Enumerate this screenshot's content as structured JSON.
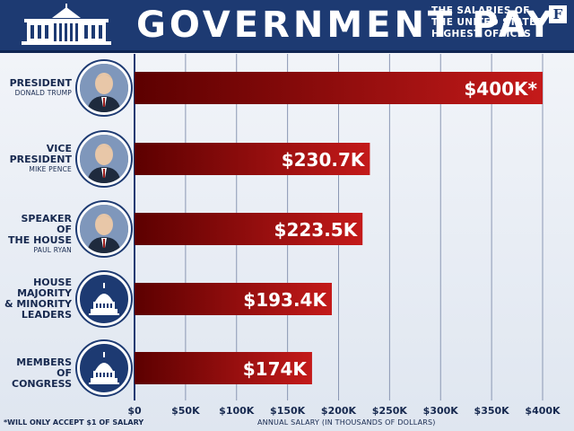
{
  "header": {
    "title": "GOVERNMENT PAY",
    "subtitle_lines": [
      "THE SALARIES OF",
      "THE UNITED STATES'",
      "HIGHEST OFFICES"
    ],
    "brand": "F"
  },
  "footnote": "*WILL ONLY ACCEPT $1 OF SALARY",
  "colors": {
    "header_bg": "#1d3a72",
    "bar_dark": "#5c0000",
    "bar_light": "#c41a1a",
    "label": "#17294f"
  },
  "chart_data": {
    "type": "bar",
    "orientation": "horizontal",
    "title": "GOVERNMENT PAY",
    "subtitle": "THE SALARIES OF THE UNITED STATES' HIGHEST OFFICES",
    "xlabel": "ANNUAL SALARY (IN THOUSANDS OF DOLLARS)",
    "ylabel": "",
    "xlim": [
      0,
      400
    ],
    "grid": true,
    "x_ticks": [
      "$0",
      "$50K",
      "$100K",
      "$150K",
      "$200K",
      "$250K",
      "$300K",
      "$350K",
      "$400K"
    ],
    "categories": [
      {
        "label_lines": [
          "PRESIDENT"
        ],
        "sub": "DONALD TRUMP",
        "icon": "person-portrait-icon"
      },
      {
        "label_lines": [
          "VICE",
          "PRESIDENT"
        ],
        "sub": "MIKE PENCE",
        "icon": "person-portrait-icon"
      },
      {
        "label_lines": [
          "SPEAKER OF",
          "THE HOUSE"
        ],
        "sub": "PAUL RYAN",
        "icon": "person-portrait-icon"
      },
      {
        "label_lines": [
          "HOUSE",
          "MAJORITY",
          "& MINORITY",
          "LEADERS"
        ],
        "sub": "",
        "icon": "capitol-icon"
      },
      {
        "label_lines": [
          "MEMBERS",
          "OF CONGRESS"
        ],
        "sub": "",
        "icon": "capitol-icon"
      }
    ],
    "values": [
      400,
      230.7,
      223.5,
      193.4,
      174
    ],
    "data_labels": [
      "$400K*",
      "$230.7K",
      "$223.5K",
      "$193.4K",
      "$174K"
    ]
  }
}
